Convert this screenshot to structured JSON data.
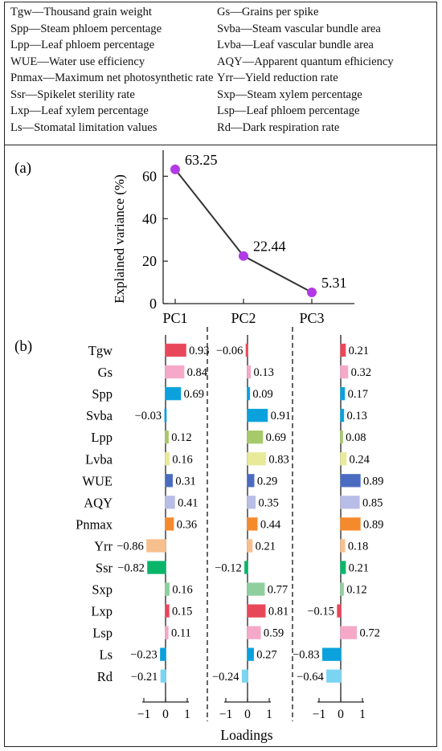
{
  "legend": {
    "separator": "—",
    "left": [
      {
        "abbr": "Tgw",
        "desc": "Thousand grain weight"
      },
      {
        "abbr": "Spp",
        "desc": "Steam phloem percentage"
      },
      {
        "abbr": "Lpp",
        "desc": "Leaf phloem percentage"
      },
      {
        "abbr": "WUE",
        "desc": "Water use efficiency"
      },
      {
        "abbr": "Pnmax",
        "desc": "Maximum net photosynthetic rate"
      },
      {
        "abbr": "Ssr",
        "desc": "Spikelet sterility rate"
      },
      {
        "abbr": "Lxp",
        "desc": "Leaf xylem percentage"
      },
      {
        "abbr": "Ls",
        "desc": "Stomatal limitation values"
      }
    ],
    "right": [
      {
        "abbr": "Gs",
        "desc": "Grains per spike"
      },
      {
        "abbr": "Svba",
        "desc": "Steam vascular bundle area"
      },
      {
        "abbr": "Lvba",
        "desc": "Leaf vascular bundle area"
      },
      {
        "abbr": "AQY",
        "desc": "Apparent quantum efhiciency"
      },
      {
        "abbr": "Yrr",
        "desc": "Yield reduction rate"
      },
      {
        "abbr": "Sxp",
        "desc": "Steam xylem percentage"
      },
      {
        "abbr": "Lsp",
        "desc": "Leaf phloem percentage"
      },
      {
        "abbr": "Rd",
        "desc": "Dark respiration rate"
      }
    ]
  },
  "chart_data": [
    {
      "type": "line",
      "panel_label": "(a)",
      "ylabel": "Explained variance (%)",
      "xlabel": "",
      "categories": [
        "PC1",
        "PC2",
        "PC3"
      ],
      "values": [
        63.25,
        22.44,
        5.31
      ],
      "value_labels": [
        "63.25",
        "22.44",
        "5.31"
      ],
      "ylim": [
        0,
        70
      ],
      "yticks": [
        0,
        20,
        40,
        60
      ],
      "ytick_labels": [
        "0",
        "20",
        "40",
        "60"
      ],
      "marker_color": "#b23ae6",
      "line_color": "#333333",
      "grid": false
    },
    {
      "type": "bar",
      "orientation": "horizontal",
      "panel_label": "(b)",
      "xlabel": "Loadings",
      "xlim": [
        -1,
        1
      ],
      "xticks": [
        -1,
        0,
        1
      ],
      "xtick_labels": [
        "−1",
        "0",
        "1"
      ],
      "grid": false,
      "categories": [
        "Tgw",
        "Gs",
        "Spp",
        "Svba",
        "Lpp",
        "Lvba",
        "WUE",
        "AQY",
        "Pnmax",
        "Yrr",
        "Ssr",
        "Sxp",
        "Lxp",
        "Lsp",
        "Ls",
        "Rd"
      ],
      "colors": [
        "#e8475a",
        "#f5a8c8",
        "#0aa1dc",
        "#0aa1dc",
        "#a6c96a",
        "#e8ea9a",
        "#4a6cc0",
        "#b7bde6",
        "#f58a2c",
        "#f7bf8e",
        "#0ab56a",
        "#8fcf9e",
        "#e8475a",
        "#f5a8c8",
        "#0aa1dc",
        "#7ad4f2"
      ],
      "series": [
        {
          "values": [
            0.93,
            0.84,
            0.69,
            -0.03,
            0.12,
            0.16,
            0.31,
            0.41,
            0.36,
            -0.86,
            -0.82,
            0.16,
            0.15,
            0.11,
            -0.23,
            -0.21
          ],
          "labels": [
            "0.93",
            "0.84",
            "0.69",
            "−0.03",
            "0.12",
            "0.16",
            "0.31",
            "0.41",
            "0.36",
            "−0.86",
            "−0.82",
            "0.16",
            "0.15",
            "0.11",
            "−0.23",
            "−0.21"
          ]
        },
        {
          "values": [
            -0.06,
            0.13,
            0.09,
            0.91,
            0.69,
            0.83,
            0.29,
            0.35,
            0.44,
            0.21,
            -0.12,
            0.77,
            0.81,
            0.59,
            0.27,
            -0.24
          ],
          "labels": [
            "−0.06",
            "0.13",
            "0.09",
            "0.91",
            "0.69",
            "0.83",
            "0.29",
            "0.35",
            "0.44",
            "0.21",
            "−0.12",
            "0.77",
            "0.81",
            "0.59",
            "0.27",
            "−0.24"
          ]
        },
        {
          "values": [
            0.21,
            0.32,
            0.17,
            0.13,
            0.08,
            0.24,
            0.89,
            0.85,
            0.89,
            0.18,
            0.21,
            0.12,
            -0.15,
            0.72,
            -0.83,
            -0.64
          ],
          "labels": [
            "0.21",
            "0.32",
            "0.17",
            "0.13",
            "0.08",
            "0.24",
            "0.89",
            "0.85",
            "0.89",
            "0.18",
            "0.21",
            "0.12",
            "−0.15",
            "0.72",
            "−0.83",
            "−0.64"
          ]
        }
      ]
    }
  ]
}
